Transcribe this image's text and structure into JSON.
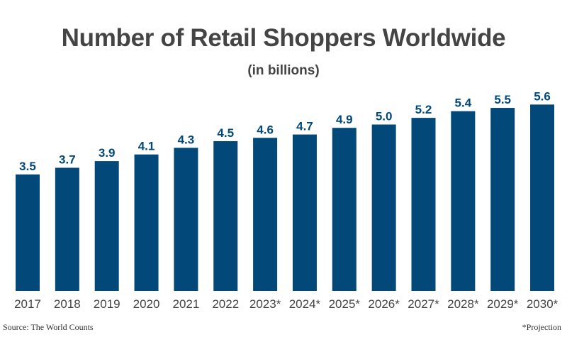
{
  "chart_data": {
    "type": "bar",
    "title": "Number of Retail Shoppers Worldwide",
    "subtitle": "(in billions)",
    "categories": [
      "2017",
      "2018",
      "2019",
      "2020",
      "2021",
      "2022",
      "2023*",
      "2024*",
      "2025*",
      "2026*",
      "2027*",
      "2028*",
      "2029*",
      "2030*"
    ],
    "values": [
      3.5,
      3.7,
      3.9,
      4.1,
      4.3,
      4.5,
      4.6,
      4.7,
      4.9,
      5.0,
      5.2,
      5.4,
      5.5,
      5.6
    ],
    "data_labels": [
      "3.5",
      "3.7",
      "3.9",
      "4.1",
      "4.3",
      "4.5",
      "4.6",
      "4.7",
      "4.9",
      "5.0",
      "5.2",
      "5.4",
      "5.5",
      "5.6"
    ],
    "xlabel": "",
    "ylabel": "",
    "ylim": [
      0,
      5.6
    ],
    "grid": false,
    "y_axis_visible": false,
    "bar_color": "#02497a",
    "label_color": "#02497a",
    "tick_label_color": "#444444"
  },
  "footer": {
    "source": "Source: The World Counts",
    "note": "*Projection"
  }
}
